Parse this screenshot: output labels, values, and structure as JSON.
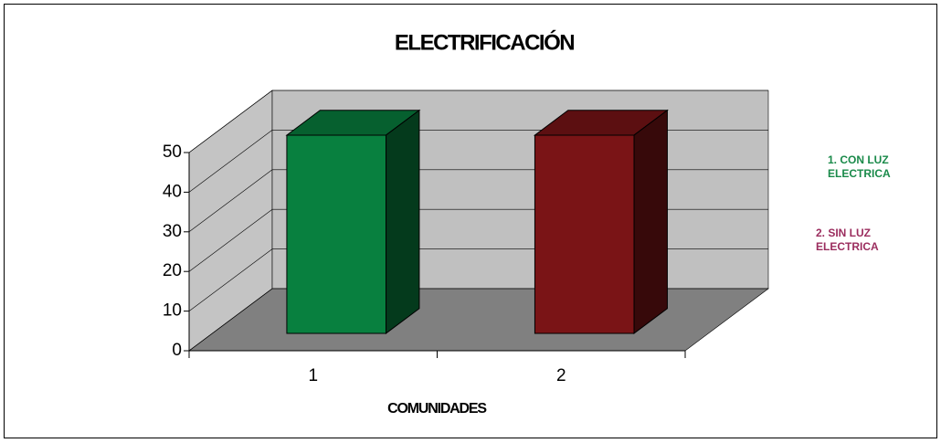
{
  "chart_data": {
    "type": "bar3d",
    "title": "ELECTRIFICACIÓN",
    "x_label": "COMUNIDADES",
    "categories": [
      "1",
      "2"
    ],
    "values": [
      50,
      50
    ],
    "colors": [
      "#08803f",
      "#7a1416"
    ],
    "ylim": [
      0,
      50
    ],
    "yticks": [
      0,
      10,
      20,
      30,
      40,
      50
    ],
    "grid": true,
    "legend": [
      "1. CON LUZ ELECTRICA",
      "2. SIN LUZ ELECTRICA"
    ],
    "legend_colors": [
      "#1a8a4a",
      "#9b2d5e"
    ]
  }
}
